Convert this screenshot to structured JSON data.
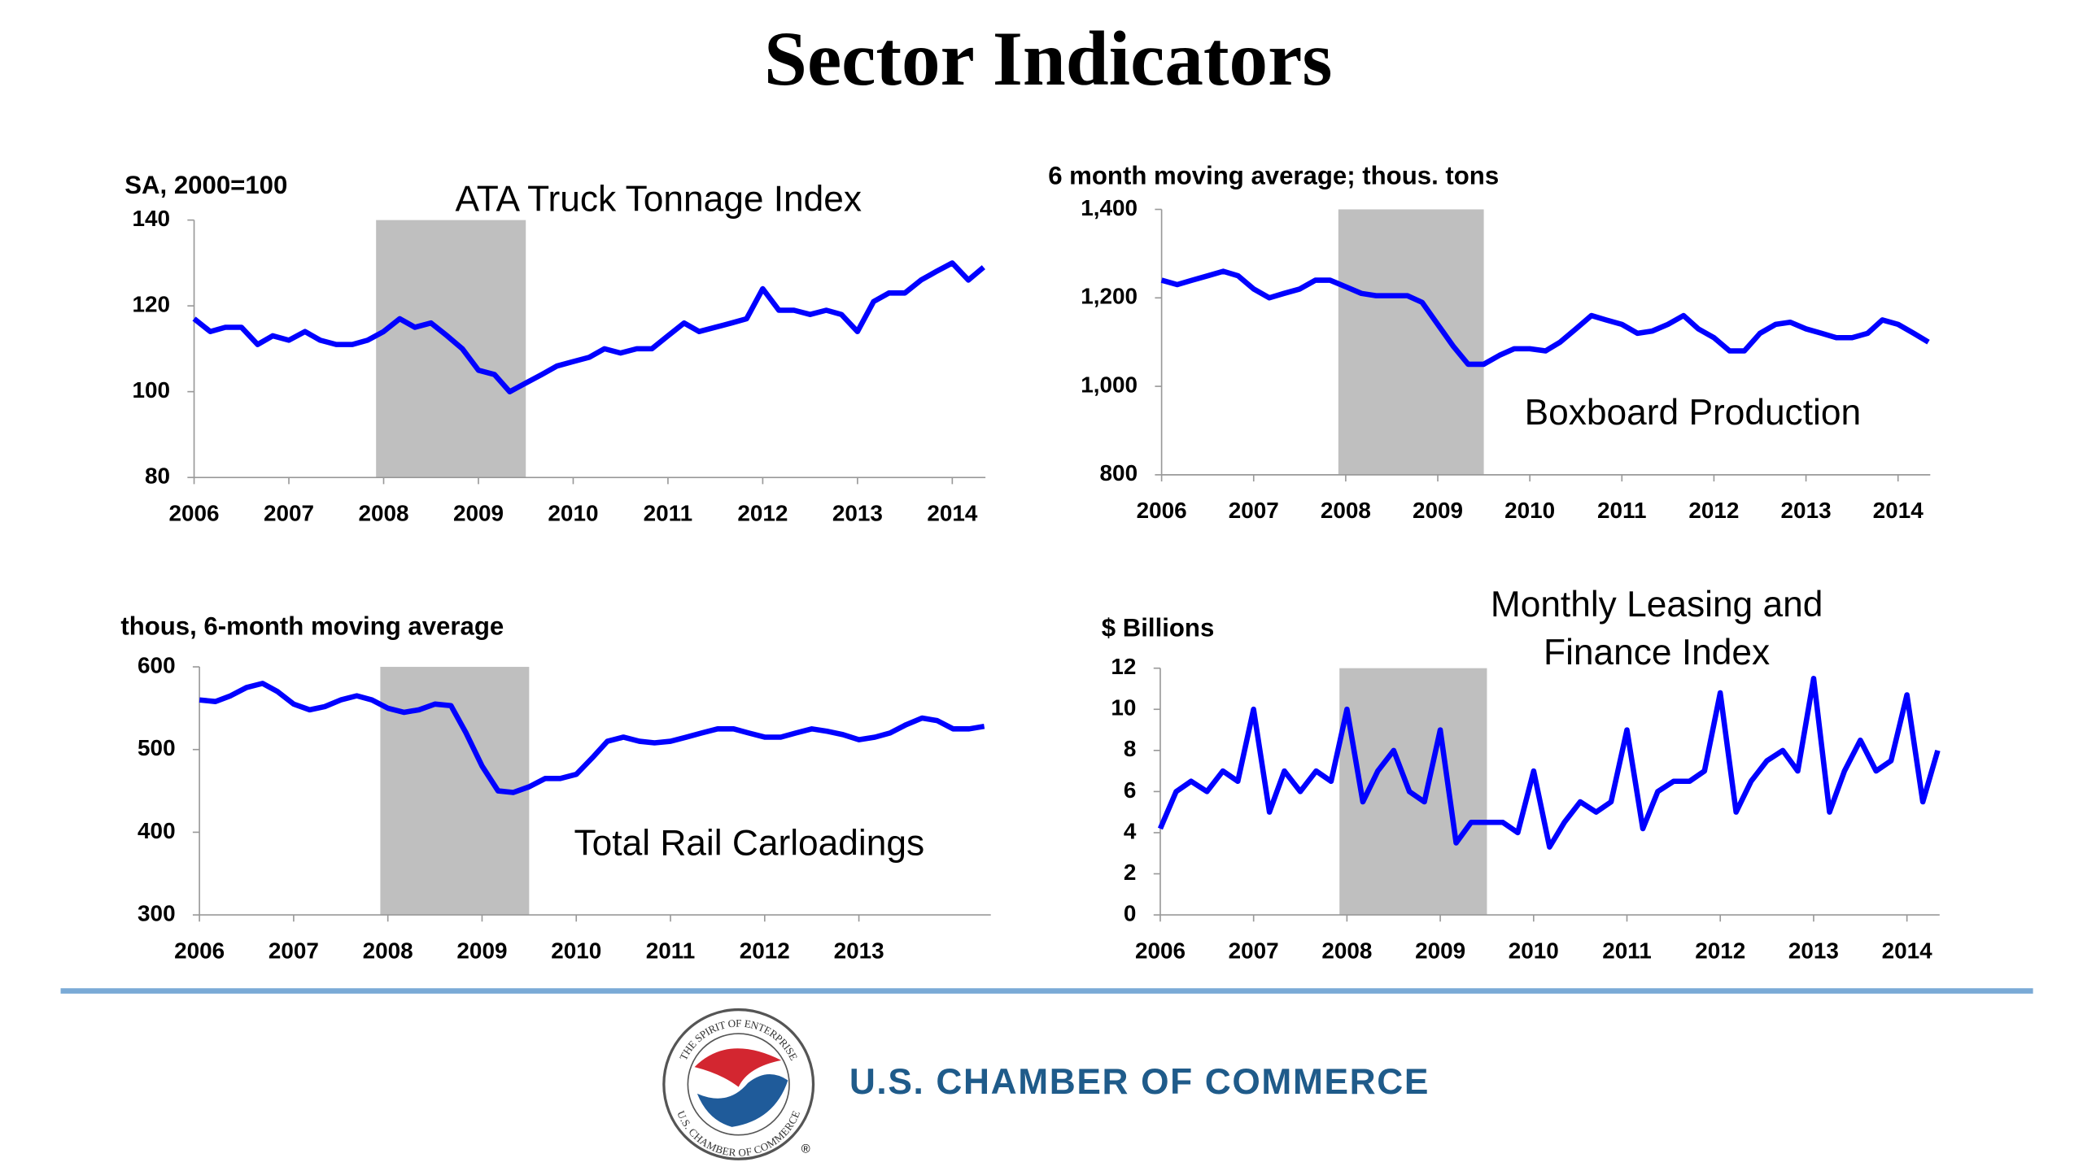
{
  "header": {
    "title": "Sector Indicators"
  },
  "chart_data": [
    {
      "type": "line",
      "title": "ATA Truck Tonnage Index",
      "y_label": "SA, 2000=100",
      "x": [
        2006,
        2006.17,
        2006.33,
        2006.5,
        2006.67,
        2006.83,
        2007,
        2007.17,
        2007.33,
        2007.5,
        2007.67,
        2007.83,
        2008,
        2008.17,
        2008.33,
        2008.5,
        2008.67,
        2008.83,
        2009,
        2009.17,
        2009.33,
        2009.5,
        2009.67,
        2009.83,
        2010,
        2010.17,
        2010.33,
        2010.5,
        2010.67,
        2010.83,
        2011,
        2011.17,
        2011.33,
        2011.5,
        2011.67,
        2011.83,
        2012,
        2012.17,
        2012.33,
        2012.5,
        2012.67,
        2012.83,
        2013,
        2013.17,
        2013.33,
        2013.5,
        2013.67,
        2013.83,
        2014,
        2014.17,
        2014.33
      ],
      "series": [
        {
          "color": "#0000ff",
          "values": [
            117,
            114,
            115,
            115,
            111,
            113,
            112,
            114,
            112,
            111,
            111,
            112,
            114,
            117,
            115,
            116,
            113,
            110,
            105,
            104,
            100,
            102,
            104,
            106,
            107,
            108,
            110,
            109,
            110,
            110,
            113,
            116,
            114,
            115,
            116,
            117,
            124,
            119,
            119,
            118,
            119,
            118,
            114,
            121,
            123,
            123,
            126,
            128,
            130,
            126,
            129
          ]
        }
      ],
      "xlim": [
        2006,
        2014.35
      ],
      "xticks": [
        2006,
        2007,
        2008,
        2009,
        2010,
        2011,
        2012,
        2013,
        2014
      ],
      "ylim": [
        80,
        140
      ],
      "yticks": [
        80,
        100,
        120,
        140
      ],
      "shade": [
        2007.92,
        2009.5
      ],
      "shade_color": "#bfbfbf"
    },
    {
      "type": "line",
      "title": "Boxboard Production",
      "y_label": "6 month moving average; thous. tons",
      "x": [
        2006,
        2006.17,
        2006.33,
        2006.5,
        2006.67,
        2006.83,
        2007,
        2007.17,
        2007.33,
        2007.5,
        2007.67,
        2007.83,
        2008,
        2008.17,
        2008.33,
        2008.5,
        2008.67,
        2008.83,
        2009,
        2009.17,
        2009.33,
        2009.5,
        2009.67,
        2009.83,
        2010,
        2010.17,
        2010.33,
        2010.5,
        2010.67,
        2010.83,
        2011,
        2011.17,
        2011.33,
        2011.5,
        2011.67,
        2011.83,
        2012,
        2012.17,
        2012.33,
        2012.5,
        2012.67,
        2012.83,
        2013,
        2013.17,
        2013.33,
        2013.5,
        2013.67,
        2013.83,
        2014,
        2014.17,
        2014.33
      ],
      "series": [
        {
          "color": "#0000ff",
          "values": [
            1240,
            1230,
            1240,
            1250,
            1260,
            1250,
            1220,
            1200,
            1210,
            1220,
            1240,
            1240,
            1225,
            1210,
            1205,
            1205,
            1205,
            1190,
            1140,
            1090,
            1050,
            1050,
            1070,
            1085,
            1085,
            1080,
            1100,
            1130,
            1160,
            1150,
            1140,
            1120,
            1125,
            1140,
            1160,
            1130,
            1110,
            1080,
            1080,
            1120,
            1140,
            1145,
            1130,
            1120,
            1110,
            1110,
            1120,
            1150,
            1140,
            1120,
            1100
          ]
        }
      ],
      "xlim": [
        2006,
        2014.35
      ],
      "xticks": [
        2006,
        2007,
        2008,
        2009,
        2010,
        2011,
        2012,
        2013,
        2014
      ],
      "ylim": [
        800,
        1400
      ],
      "yticks": [
        {
          "value": 800,
          "label": "800"
        },
        {
          "value": 1000,
          "label": "1,000"
        },
        {
          "value": 1200,
          "label": "1,200"
        },
        {
          "value": 1400,
          "label": "1,400"
        }
      ],
      "shade": [
        2007.92,
        2009.5
      ],
      "shade_color": "#bfbfbf"
    },
    {
      "type": "line",
      "title": "Total Rail Carloadings",
      "y_label": "thous, 6-month moving average",
      "x": [
        2006,
        2006.17,
        2006.33,
        2006.5,
        2006.67,
        2006.83,
        2007,
        2007.17,
        2007.33,
        2007.5,
        2007.67,
        2007.83,
        2008,
        2008.17,
        2008.33,
        2008.5,
        2008.67,
        2008.83,
        2009,
        2009.17,
        2009.33,
        2009.5,
        2009.67,
        2009.83,
        2010,
        2010.17,
        2010.33,
        2010.5,
        2010.67,
        2010.83,
        2011,
        2011.17,
        2011.33,
        2011.5,
        2011.67,
        2011.83,
        2012,
        2012.17,
        2012.33,
        2012.5,
        2012.67,
        2012.83,
        2013,
        2013.17,
        2013.33,
        2013.5,
        2013.67,
        2013.83,
        2014,
        2014.17,
        2014.33
      ],
      "series": [
        {
          "color": "#0000ff",
          "values": [
            560,
            558,
            565,
            575,
            580,
            570,
            555,
            548,
            552,
            560,
            565,
            560,
            550,
            545,
            548,
            555,
            553,
            520,
            480,
            450,
            448,
            455,
            465,
            465,
            470,
            490,
            510,
            515,
            510,
            508,
            510,
            515,
            520,
            525,
            525,
            520,
            515,
            515,
            520,
            525,
            522,
            518,
            512,
            515,
            520,
            530,
            538,
            535,
            525,
            525,
            528
          ]
        }
      ],
      "xlim": [
        2006,
        2014.4
      ],
      "xticks": [
        2006,
        2007,
        2008,
        2009,
        2010,
        2011,
        2012,
        2013
      ],
      "ylim": [
        300,
        600
      ],
      "yticks": [
        300,
        400,
        500,
        600
      ],
      "shade": [
        2007.92,
        2009.5
      ],
      "shade_color": "#bfbfbf"
    },
    {
      "type": "line",
      "title": [
        "Monthly Leasing and",
        "Finance Index"
      ],
      "y_label": "$ Billions",
      "x": [
        2006,
        2006.17,
        2006.33,
        2006.5,
        2006.67,
        2006.83,
        2007,
        2007.17,
        2007.33,
        2007.5,
        2007.67,
        2007.83,
        2008,
        2008.17,
        2008.33,
        2008.5,
        2008.67,
        2008.83,
        2009,
        2009.17,
        2009.33,
        2009.5,
        2009.67,
        2009.83,
        2010,
        2010.17,
        2010.33,
        2010.5,
        2010.67,
        2010.83,
        2011,
        2011.17,
        2011.33,
        2011.5,
        2011.67,
        2011.83,
        2012,
        2012.17,
        2012.33,
        2012.5,
        2012.67,
        2012.83,
        2013,
        2013.17,
        2013.33,
        2013.5,
        2013.67,
        2013.83,
        2014,
        2014.17,
        2014.33
      ],
      "series": [
        {
          "color": "#0000ff",
          "values": [
            4.2,
            6,
            6.5,
            6,
            7,
            6.5,
            10,
            5,
            7,
            6,
            7,
            6.5,
            10,
            5.5,
            7,
            8,
            6,
            5.5,
            9,
            3.5,
            4.5,
            4.5,
            4.5,
            4,
            7,
            3.3,
            4.5,
            5.5,
            5,
            5.5,
            9,
            4.2,
            6,
            6.5,
            6.5,
            7,
            10.8,
            5,
            6.5,
            7.5,
            8,
            7,
            11.5,
            5,
            7,
            8.5,
            7,
            7.5,
            10.7,
            5.5,
            8
          ]
        }
      ],
      "xlim": [
        2006,
        2014.35
      ],
      "xticks": [
        2006,
        2007,
        2008,
        2009,
        2010,
        2011,
        2012,
        2013,
        2014
      ],
      "ylim": [
        0,
        12
      ],
      "yticks": [
        0,
        2,
        4,
        6,
        8,
        10,
        12
      ],
      "shade": [
        2007.92,
        2009.5
      ],
      "shade_color": "#bfbfbf"
    }
  ],
  "footer": {
    "name": "U.S. CHAMBER OF COMMERCE",
    "logo_top": "THE SPIRIT OF ENTERPRISE",
    "logo_bottom": "U.S. CHAMBER OF COMMERCE",
    "mark": "®"
  }
}
